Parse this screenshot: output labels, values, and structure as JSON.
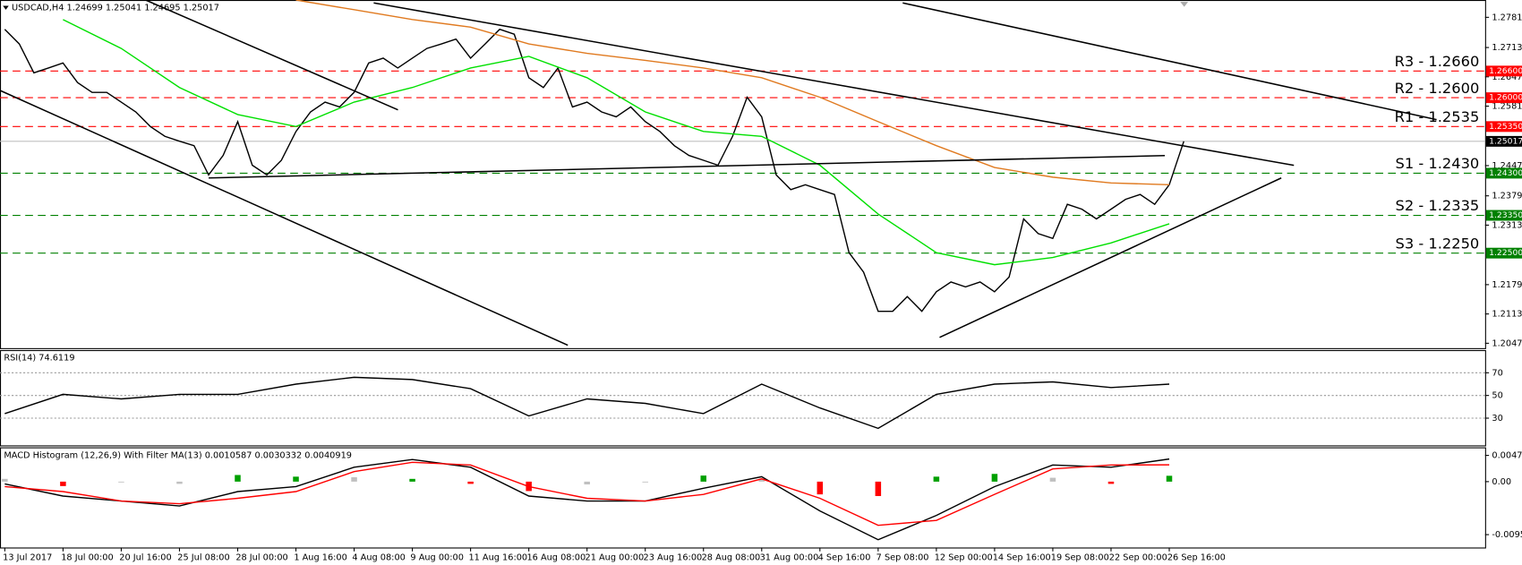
{
  "chart_data": [
    {
      "type": "line",
      "title": "USDCAD,H4 1.24699 1.25041 1.24695 1.25017",
      "xlim": [
        -0.33,
        101.7
      ],
      "ylim": [
        1.2036,
        1.282
      ],
      "yticks": [
        {
          "value": 1.2781,
          "label": "1.27810"
        },
        {
          "value": 1.2713,
          "label": "1.27130"
        },
        {
          "value": 1.2647,
          "label": "1.26470"
        },
        {
          "value": 1.2581,
          "label": "1.25810"
        },
        {
          "value": 1.2447,
          "label": "1.24470"
        },
        {
          "value": 1.2379,
          "label": "1.23790"
        },
        {
          "value": 1.2313,
          "label": "1.23130"
        },
        {
          "value": 1.2179,
          "label": "1.21790"
        },
        {
          "value": 1.2113,
          "label": "1.21130"
        },
        {
          "value": 1.2047,
          "label": "1.20470"
        }
      ],
      "grid": false,
      "series": [
        {
          "color": "#000000",
          "x": [
            0,
            1,
            2,
            3,
            4,
            5,
            6,
            7,
            8,
            9,
            10,
            11,
            12,
            13,
            14,
            15,
            16,
            17,
            18,
            19,
            20,
            21,
            22,
            23,
            24,
            25,
            26,
            27,
            28,
            29,
            30,
            31,
            32,
            33,
            34,
            35,
            36,
            37,
            38,
            39,
            40,
            41,
            42,
            43,
            44,
            45,
            46,
            47,
            48,
            49,
            50,
            51,
            52,
            53,
            54,
            55,
            56,
            57,
            58,
            59,
            60,
            61,
            62,
            63,
            64,
            65,
            66,
            67,
            68,
            69,
            70,
            71,
            72,
            73,
            74,
            75,
            76,
            77,
            78,
            79,
            80,
            81
          ],
          "values": [
            1.2754,
            1.2721,
            1.2656,
            1.2667,
            1.2678,
            1.2634,
            1.2612,
            1.2612,
            1.259,
            1.2568,
            1.2535,
            1.2513,
            1.2502,
            1.2492,
            1.2426,
            1.247,
            1.2546,
            1.2448,
            1.2426,
            1.2459,
            1.2524,
            1.2568,
            1.259,
            1.2579,
            1.2612,
            1.2678,
            1.2689,
            1.2667,
            1.2689,
            1.2711,
            1.2721,
            1.2732,
            1.2689,
            1.2721,
            1.2754,
            1.2743,
            1.2645,
            1.2623,
            1.2667,
            1.2579,
            1.259,
            1.2568,
            1.2557,
            1.2579,
            1.2546,
            1.2524,
            1.2492,
            1.247,
            1.2459,
            1.2448,
            1.2513,
            1.2601,
            1.2557,
            1.2426,
            1.2393,
            1.2404,
            1.2393,
            1.2382,
            1.2251,
            1.2207,
            1.2119,
            1.2119,
            1.2152,
            1.2119,
            1.2163,
            1.2185,
            1.2174,
            1.2185,
            1.2163,
            1.2196,
            1.2327,
            1.2294,
            1.2283,
            1.236,
            1.2349,
            1.2327,
            1.2349,
            1.2371,
            1.2382,
            1.236,
            1.2404,
            1.25017
          ]
        },
        {
          "color": "#00e000",
          "x": [
            0,
            4,
            8,
            12,
            16,
            20,
            24,
            28,
            32,
            36,
            40,
            44,
            48,
            52,
            56,
            60,
            64,
            68,
            72,
            76,
            80
          ],
          "values": [
            null,
            1.2776,
            1.2711,
            1.2623,
            1.2562,
            1.2535,
            1.259,
            1.2623,
            1.2667,
            1.2693,
            1.2645,
            1.2568,
            1.2524,
            1.2513,
            1.2448,
            1.2338,
            1.2251,
            1.2224,
            1.224,
            1.2273,
            1.2316
          ]
        },
        {
          "color": "#e07a20",
          "x": [
            0,
            4,
            8,
            12,
            16,
            20,
            24,
            28,
            32,
            36,
            40,
            44,
            48,
            52,
            56,
            60,
            64,
            68,
            72,
            76,
            80
          ],
          "values": [
            null,
            null,
            null,
            null,
            null,
            1.282,
            1.2798,
            1.2776,
            1.2759,
            1.2721,
            1.27,
            1.2684,
            1.2667,
            1.2645,
            1.2601,
            1.2546,
            1.2492,
            1.2443,
            1.2421,
            1.2408,
            1.2404
          ]
        }
      ],
      "levels": [
        {
          "label": "R3 - 1.2660",
          "value": 1.266,
          "tag": "1.26600",
          "color": "#ff0000"
        },
        {
          "label": "R2 - 1.2600",
          "value": 1.26,
          "tag": "1.26000",
          "color": "#ff0000"
        },
        {
          "label": "R1 - 1.2535",
          "value": 1.2535,
          "tag": "1.25350",
          "color": "#ff0000"
        },
        {
          "label": "S1 - 1.2430",
          "value": 1.243,
          "tag": "1.24300",
          "color": "#008000"
        },
        {
          "label": "S2 - 1.2335",
          "value": 1.2335,
          "tag": "1.23350",
          "color": "#008000"
        },
        {
          "label": "S3 - 1.2250",
          "value": 1.225,
          "tag": "1.22500",
          "color": "#008000"
        }
      ],
      "last": 1.25017
    },
    {
      "type": "line",
      "title": "RSI(14) 74.6119",
      "xlim": [
        -0.33,
        101.7
      ],
      "ylim": [
        6,
        90
      ],
      "yticks": [
        70,
        50,
        30
      ],
      "grid": true,
      "series": [
        {
          "color": "#000000",
          "x": [
            0,
            4,
            8,
            12,
            16,
            20,
            24,
            28,
            32,
            36,
            40,
            44,
            48,
            52,
            56,
            60,
            64,
            68,
            72,
            76,
            80
          ],
          "values": [
            34,
            51,
            47,
            51,
            51,
            60,
            66,
            64,
            56,
            32,
            47,
            43,
            34,
            60,
            39,
            21,
            51,
            60,
            62,
            57,
            60
          ]
        }
      ]
    },
    {
      "type": "line",
      "title": "MACD Histogram (12,26,9) With Filter MA(13) 0.0010587 0.0030332 0.0040919",
      "xlim": [
        -0.33,
        101.7
      ],
      "ylim": [
        -0.0119,
        0.0062
      ],
      "yticks": [
        0.004742,
        {
          "value": 0,
          "label": "0.00"
        },
        -0.009575
      ],
      "grid": false,
      "xticks": [
        {
          "value": 0,
          "label": "13 Jul 2017"
        },
        {
          "value": 4,
          "label": "18 Jul 00:00"
        },
        {
          "value": 8,
          "label": "20 Jul 16:00"
        },
        {
          "value": 12,
          "label": "25 Jul 08:00"
        },
        {
          "value": 16,
          "label": "28 Jul 00:00"
        },
        {
          "value": 20,
          "label": "1 Aug 16:00"
        },
        {
          "value": 24,
          "label": "4 Aug 08:00"
        },
        {
          "value": 28,
          "label": "9 Aug 00:00"
        },
        {
          "value": 32,
          "label": "11 Aug 16:00"
        },
        {
          "value": 36,
          "label": "16 Aug 08:00"
        },
        {
          "value": 40,
          "label": "21 Aug 00:00"
        },
        {
          "value": 44,
          "label": "23 Aug 16:00"
        },
        {
          "value": 48,
          "label": "28 Aug 08:00"
        },
        {
          "value": 52,
          "label": "31 Aug 00:00"
        },
        {
          "value": 56,
          "label": "4 Sep 16:00"
        },
        {
          "value": 60,
          "label": "7 Sep 08:00"
        },
        {
          "value": 64,
          "label": "12 Sep 00:00"
        },
        {
          "value": 68,
          "label": "14 Sep 16:00"
        },
        {
          "value": 72,
          "label": "19 Sep 08:00"
        },
        {
          "value": 76,
          "label": "22 Sep 00:00"
        },
        {
          "value": 80,
          "label": "26 Sep 16:00"
        }
      ],
      "histogram": {
        "x": [
          0,
          4,
          8,
          12,
          16,
          20,
          24,
          28,
          32,
          36,
          40,
          44,
          48,
          52,
          56,
          60,
          64,
          68,
          72,
          76,
          80
        ],
        "values": [
          0.0005,
          -0.0008,
          0,
          -0.0004,
          0.0012,
          0.0009,
          0.0008,
          0.0005,
          -0.0004,
          -0.0017,
          -0.0005,
          0,
          0.0011,
          0.0004,
          -0.0023,
          -0.0026,
          0.0009,
          0.0014,
          0.0007,
          -0.0004,
          0.0010587
        ],
        "colors": [
          "#c0c0c0",
          "#ff0000",
          "#c0c0c0",
          "#c0c0c0",
          "#00a000",
          "#00a000",
          "#c0c0c0",
          "#00a000",
          "#ff0000",
          "#ff0000",
          "#c0c0c0",
          "#c0c0c0",
          "#00a000",
          "#c0c0c0",
          "#ff0000",
          "#ff0000",
          "#00a000",
          "#00a000",
          "#c0c0c0",
          "#ff0000",
          "#00a000"
        ]
      },
      "series": [
        {
          "color": "#000000",
          "x": [
            0,
            4,
            8,
            12,
            16,
            20,
            24,
            28,
            32,
            36,
            40,
            44,
            48,
            52,
            56,
            60,
            64,
            68,
            72,
            76,
            80
          ],
          "values": [
            -0.0004,
            -0.0026,
            -0.0035,
            -0.0044,
            -0.0018,
            -0.0009,
            0.0026,
            0.004,
            0.0026,
            -0.0026,
            -0.0035,
            -0.0035,
            -0.0012,
            0.0009,
            -0.0053,
            -0.0105,
            -0.0061,
            -0.0009,
            0.003,
            0.0026,
            0.0040919
          ]
        },
        {
          "color": "#ff0000",
          "x": [
            0,
            4,
            8,
            12,
            16,
            20,
            24,
            28,
            32,
            36,
            40,
            44,
            48,
            52,
            56,
            60,
            64,
            68,
            72,
            76,
            80
          ],
          "values": [
            -0.0009,
            -0.0018,
            -0.0035,
            -0.004,
            -0.003,
            -0.0018,
            0.0018,
            0.0035,
            0.003,
            -0.0009,
            -0.003,
            -0.0035,
            -0.0023,
            0.0005,
            -0.003,
            -0.0079,
            -0.007,
            -0.0023,
            0.0023,
            0.003,
            0.0030332
          ]
        }
      ]
    }
  ]
}
